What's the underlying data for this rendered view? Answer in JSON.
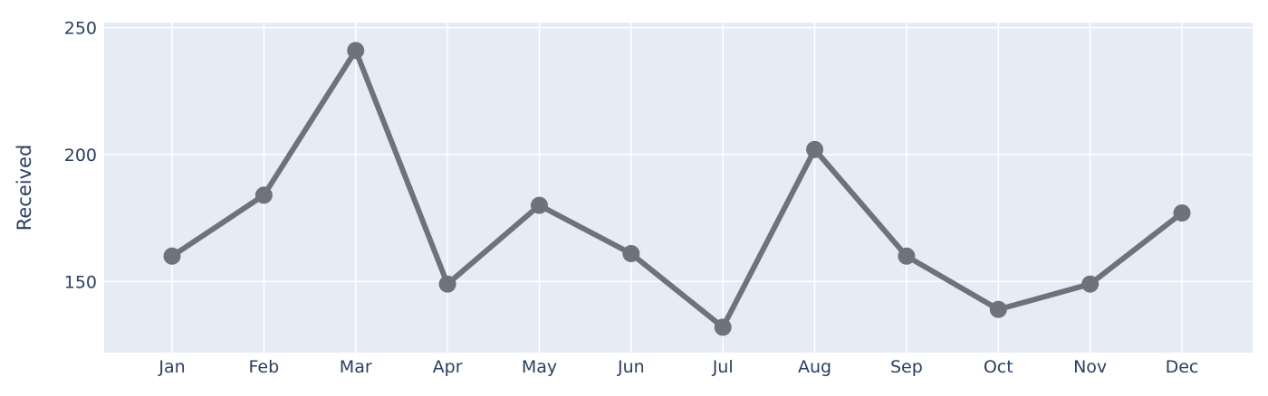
{
  "chart_data": {
    "type": "line",
    "title": "",
    "xlabel": "",
    "ylabel": "Received",
    "categories": [
      "Jan",
      "Feb",
      "Mar",
      "Apr",
      "May",
      "Jun",
      "Jul",
      "Aug",
      "Sep",
      "Oct",
      "Nov",
      "Dec"
    ],
    "series": [
      {
        "values": [
          160,
          184,
          241,
          149,
          180,
          161,
          132,
          202,
          160,
          139,
          149,
          177
        ]
      }
    ],
    "ylim": [
      122,
      252
    ],
    "yticks": [
      150,
      200,
      250
    ],
    "grid": true,
    "legend": "none",
    "colors": {
      "plot_background": "#e5ecf6",
      "line": "#70727b",
      "grid": "#ffffff",
      "text": "#2a3f5f"
    }
  }
}
